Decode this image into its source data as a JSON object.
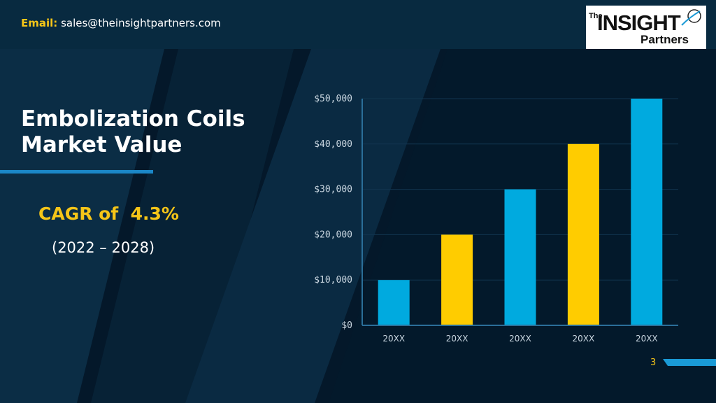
{
  "header": {
    "email_label": "Email:",
    "email_address": "sales@theinsightpartners.com"
  },
  "logo": {
    "the": "The",
    "insight": "INSIGHT",
    "partners": "Partners"
  },
  "slide": {
    "title_line1": "Embolization Coils",
    "title_line2": "Market Value",
    "cagr": "CAGR of  4.3%",
    "period": "(2022 – 2028)",
    "page_number": "3"
  },
  "colors": {
    "background": "#04182a",
    "accent_blue": "#00aadf",
    "accent_yellow": "#ffcc00",
    "title_underline": "#1b87c7"
  },
  "chart_data": {
    "type": "bar",
    "categories": [
      "20XX",
      "20XX",
      "20XX",
      "20XX",
      "20XX"
    ],
    "values": [
      10000,
      20000,
      30000,
      40000,
      50000
    ],
    "bar_colors": [
      "#00aadf",
      "#ffcc00",
      "#00aadf",
      "#ffcc00",
      "#00aadf"
    ],
    "ylim": [
      0,
      50000
    ],
    "yticks": [
      0,
      10000,
      20000,
      30000,
      40000,
      50000
    ],
    "ytick_labels": [
      "$0",
      "$10,000",
      "$20,000",
      "$30,000",
      "$40,000",
      "$50,000"
    ],
    "grid": true,
    "legend": false,
    "title": "",
    "xlabel": "",
    "ylabel": ""
  }
}
